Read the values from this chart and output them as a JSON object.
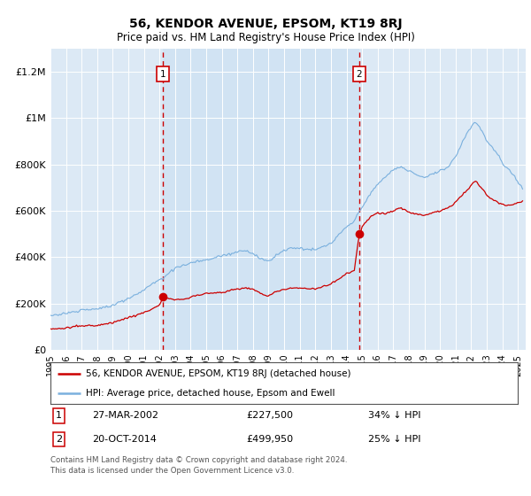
{
  "title": "56, KENDOR AVENUE, EPSOM, KT19 8RJ",
  "subtitle": "Price paid vs. HM Land Registry's House Price Index (HPI)",
  "background_color": "#dce9f5",
  "plot_bg_color": "#dce9f5",
  "ylabel_ticks": [
    "£0",
    "£200K",
    "£400K",
    "£600K",
    "£800K",
    "£1M",
    "£1.2M"
  ],
  "ytick_values": [
    0,
    200000,
    400000,
    600000,
    800000,
    1000000,
    1200000
  ],
  "ylim": [
    0,
    1300000
  ],
  "sale1": {
    "date_num": 2002.23,
    "price": 227500,
    "label": "1",
    "date_str": "27-MAR-2002",
    "price_str": "£227,500",
    "pct": "34% ↓ HPI"
  },
  "sale2": {
    "date_num": 2014.8,
    "price": 499950,
    "label": "2",
    "date_str": "20-OCT-2014",
    "price_str": "£499,950",
    "pct": "25% ↓ HPI"
  },
  "legend_line1": "56, KENDOR AVENUE, EPSOM, KT19 8RJ (detached house)",
  "legend_line2": "HPI: Average price, detached house, Epsom and Ewell",
  "footer": "Contains HM Land Registry data © Crown copyright and database right 2024.\nThis data is licensed under the Open Government Licence v3.0.",
  "hpi_color": "#7ab0de",
  "price_color": "#cc0000",
  "dashed_color": "#cc0000",
  "sale_marker_color": "#cc0000",
  "xlim_start": 1995.0,
  "xlim_end": 2025.5,
  "shade_color": "#c8dff2"
}
